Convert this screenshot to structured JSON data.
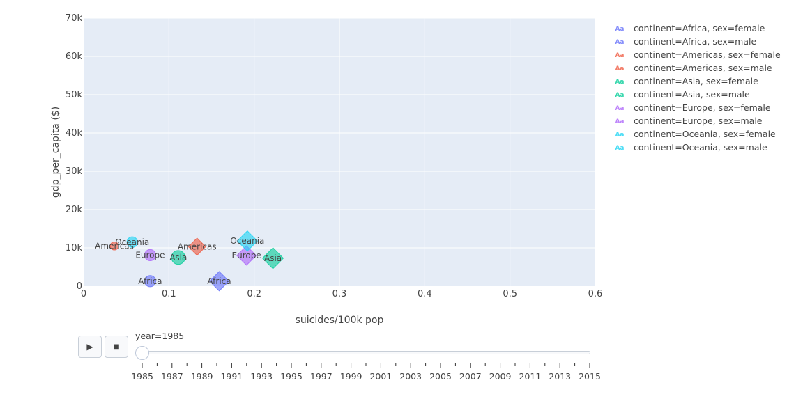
{
  "chart_data": {
    "type": "scatter",
    "xlabel": "suicides/100k pop",
    "ylabel": "gdp_per_capita ($)",
    "xlim": [
      0,
      0.6
    ],
    "ylim": [
      0,
      70000
    ],
    "xticks": [
      0,
      0.1,
      0.2,
      0.3,
      0.4,
      0.5,
      0.6
    ],
    "xtick_labels": [
      "0",
      "0.1",
      "0.2",
      "0.3",
      "0.4",
      "0.5",
      "0.6"
    ],
    "yticks": [
      0,
      10000,
      20000,
      30000,
      40000,
      50000,
      60000,
      70000
    ],
    "ytick_labels": [
      "0",
      "10k",
      "20k",
      "30k",
      "40k",
      "50k",
      "60k",
      "70k"
    ],
    "grid": true,
    "legend_position": "right",
    "series": [
      {
        "name": "continent=Africa, sex=female",
        "symbol": "circle",
        "color": "#636efa",
        "points": [
          {
            "x": 0.078,
            "y": 1300,
            "label": "Africa",
            "size": 0.45
          }
        ]
      },
      {
        "name": "continent=Africa, sex=male",
        "symbol": "diamond",
        "color": "#636efa",
        "points": [
          {
            "x": 0.159,
            "y": 1300,
            "label": "Africa",
            "size": 0.9
          }
        ]
      },
      {
        "name": "continent=Americas, sex=female",
        "symbol": "circle",
        "color": "#EF553B",
        "points": [
          {
            "x": 0.036,
            "y": 10500,
            "label": "Americas",
            "size": 0.2
          }
        ]
      },
      {
        "name": "continent=Americas, sex=male",
        "symbol": "diamond",
        "color": "#EF553B",
        "points": [
          {
            "x": 0.133,
            "y": 10300,
            "label": "Americas",
            "size": 0.75
          }
        ]
      },
      {
        "name": "continent=Asia, sex=female",
        "symbol": "circle",
        "color": "#00cc96",
        "points": [
          {
            "x": 0.111,
            "y": 7500,
            "label": "Asia",
            "size": 0.65
          }
        ]
      },
      {
        "name": "continent=Asia, sex=male",
        "symbol": "diamond",
        "color": "#00cc96",
        "points": [
          {
            "x": 0.222,
            "y": 7300,
            "label": "Asia",
            "size": 1.0
          }
        ]
      },
      {
        "name": "continent=Europe, sex=female",
        "symbol": "circle",
        "color": "#ab63fa",
        "points": [
          {
            "x": 0.078,
            "y": 8100,
            "label": "Europe",
            "size": 0.45
          }
        ]
      },
      {
        "name": "continent=Europe, sex=male",
        "symbol": "diamond",
        "color": "#ab63fa",
        "points": [
          {
            "x": 0.191,
            "y": 8000,
            "label": "Europe",
            "size": 0.9
          }
        ]
      },
      {
        "name": "continent=Oceania, sex=female",
        "symbol": "circle",
        "color": "#19d3f3",
        "points": [
          {
            "x": 0.057,
            "y": 11500,
            "label": "Oceania",
            "size": 0.4
          }
        ]
      },
      {
        "name": "continent=Oceania, sex=male",
        "symbol": "diamond",
        "color": "#19d3f3",
        "points": [
          {
            "x": 0.192,
            "y": 11800,
            "label": "Oceania",
            "size": 0.95
          }
        ]
      }
    ]
  },
  "legend_glyph": "Aa",
  "slider": {
    "current_label": "year=1985",
    "play_icon": "play-icon",
    "stop_icon": "stop-icon",
    "play_symbol": "▶",
    "stop_symbol": "■",
    "year_labels": [
      "1985",
      "1987",
      "1989",
      "1991",
      "1993",
      "1995",
      "1997",
      "1999",
      "2001",
      "2003",
      "2005",
      "2007",
      "2009",
      "2011",
      "2013",
      "2015"
    ],
    "first_year": 1985,
    "last_year": 2015,
    "selected_year": 1985
  }
}
